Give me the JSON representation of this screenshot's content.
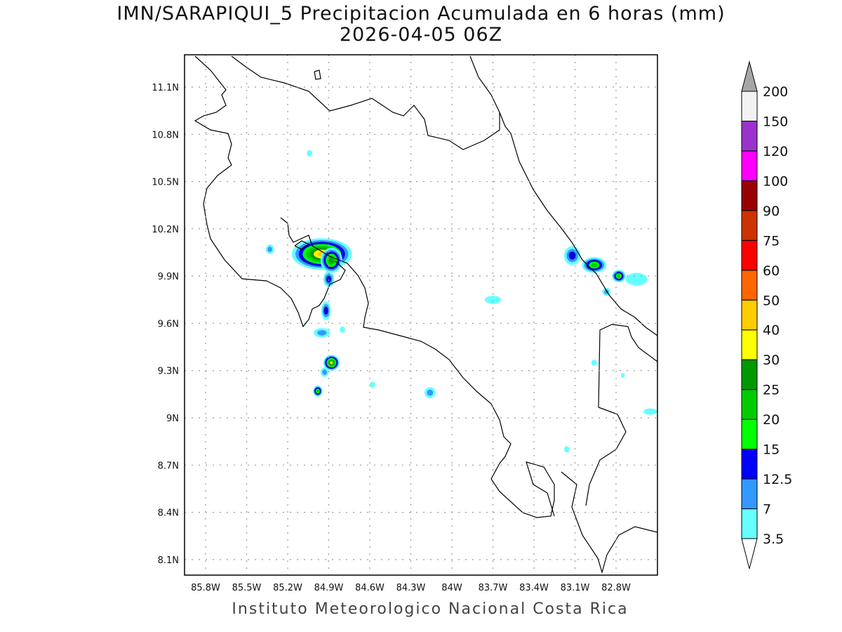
{
  "title_line1": "IMN/SARAPIQUI_5 Precipitacion Acumulada en 6 horas (mm)",
  "title_line2": "2026-04-05 06Z",
  "credit": "Instituto Meteorologico Nacional Costa Rica",
  "chart_data": {
    "type": "heatmap",
    "lon_range": [
      85.95,
      82.5
    ],
    "lat_range": [
      11.3,
      8.0
    ],
    "lon_ticks": [
      "85.8W",
      "85.5W",
      "85.2W",
      "84.9W",
      "84.6W",
      "84.3W",
      "84W",
      "83.7W",
      "83.4W",
      "83.1W",
      "82.8W"
    ],
    "lon_values": [
      85.8,
      85.5,
      85.2,
      84.9,
      84.6,
      84.3,
      84.0,
      83.7,
      83.4,
      83.1,
      82.8
    ],
    "lat_ticks": [
      "11.1N",
      "10.8N",
      "10.5N",
      "10.2N",
      "9.9N",
      "9.6N",
      "9.3N",
      "9N",
      "8.7N",
      "8.4N",
      "8.1N"
    ],
    "lat_values": [
      11.1,
      10.8,
      10.5,
      10.2,
      9.9,
      9.6,
      9.3,
      9.0,
      8.7,
      8.4,
      8.1
    ],
    "grid": true,
    "colorbar": {
      "labels": [
        "3.5",
        "7",
        "12.5",
        "15",
        "20",
        "25",
        "30",
        "40",
        "50",
        "60",
        "75",
        "90",
        "100",
        "120",
        "150",
        "200"
      ],
      "colors": [
        "#66ffff",
        "#3399ff",
        "#0000ff",
        "#00ff00",
        "#00cc00",
        "#009900",
        "#ffff00",
        "#ffcc00",
        "#ff6600",
        "#ff0000",
        "#cc3300",
        "#990000",
        "#ff00ff",
        "#9933cc",
        "#f2f2f2"
      ],
      "over_color": "#a6a6a6",
      "under_color": "#ffffff"
    },
    "rain_cells": [
      {
        "lon": 84.95,
        "lat": 10.04,
        "rx": 0.22,
        "ry": 0.1,
        "max": 40
      },
      {
        "lon": 84.88,
        "lat": 10.0,
        "rx": 0.08,
        "ry": 0.08,
        "max": 25
      },
      {
        "lon": 85.33,
        "lat": 10.07,
        "rx": 0.03,
        "ry": 0.03,
        "max": 7
      },
      {
        "lon": 85.04,
        "lat": 10.68,
        "rx": 0.02,
        "ry": 0.02,
        "max": 3.5
      },
      {
        "lon": 84.9,
        "lat": 9.88,
        "rx": 0.04,
        "ry": 0.05,
        "max": 12.5
      },
      {
        "lon": 84.92,
        "lat": 9.68,
        "rx": 0.035,
        "ry": 0.06,
        "max": 12.5
      },
      {
        "lon": 84.95,
        "lat": 9.54,
        "rx": 0.06,
        "ry": 0.03,
        "max": 7
      },
      {
        "lon": 84.8,
        "lat": 9.56,
        "rx": 0.02,
        "ry": 0.02,
        "max": 3.5
      },
      {
        "lon": 84.88,
        "lat": 9.35,
        "rx": 0.06,
        "ry": 0.05,
        "max": 30
      },
      {
        "lon": 84.93,
        "lat": 9.29,
        "rx": 0.03,
        "ry": 0.03,
        "max": 7
      },
      {
        "lon": 84.98,
        "lat": 9.17,
        "rx": 0.035,
        "ry": 0.035,
        "max": 20
      },
      {
        "lon": 84.58,
        "lat": 9.21,
        "rx": 0.02,
        "ry": 0.02,
        "max": 3.5
      },
      {
        "lon": 84.16,
        "lat": 9.16,
        "rx": 0.04,
        "ry": 0.035,
        "max": 7
      },
      {
        "lon": 83.7,
        "lat": 9.75,
        "rx": 0.06,
        "ry": 0.025,
        "max": 3.5
      },
      {
        "lon": 83.12,
        "lat": 10.03,
        "rx": 0.06,
        "ry": 0.06,
        "max": 12.5
      },
      {
        "lon": 82.96,
        "lat": 9.97,
        "rx": 0.09,
        "ry": 0.05,
        "max": 20
      },
      {
        "lon": 82.78,
        "lat": 9.9,
        "rx": 0.05,
        "ry": 0.04,
        "max": 20
      },
      {
        "lon": 82.65,
        "lat": 9.88,
        "rx": 0.08,
        "ry": 0.04,
        "max": 3.5
      },
      {
        "lon": 82.87,
        "lat": 9.8,
        "rx": 0.03,
        "ry": 0.025,
        "max": 7
      },
      {
        "lon": 82.55,
        "lat": 9.04,
        "rx": 0.05,
        "ry": 0.02,
        "max": 3.5
      },
      {
        "lon": 82.96,
        "lat": 9.35,
        "rx": 0.02,
        "ry": 0.02,
        "max": 3.5
      },
      {
        "lon": 82.75,
        "lat": 9.27,
        "rx": 0.015,
        "ry": 0.015,
        "max": 3.5
      },
      {
        "lon": 83.16,
        "lat": 8.8,
        "rx": 0.02,
        "ry": 0.02,
        "max": 3.5
      }
    ]
  }
}
